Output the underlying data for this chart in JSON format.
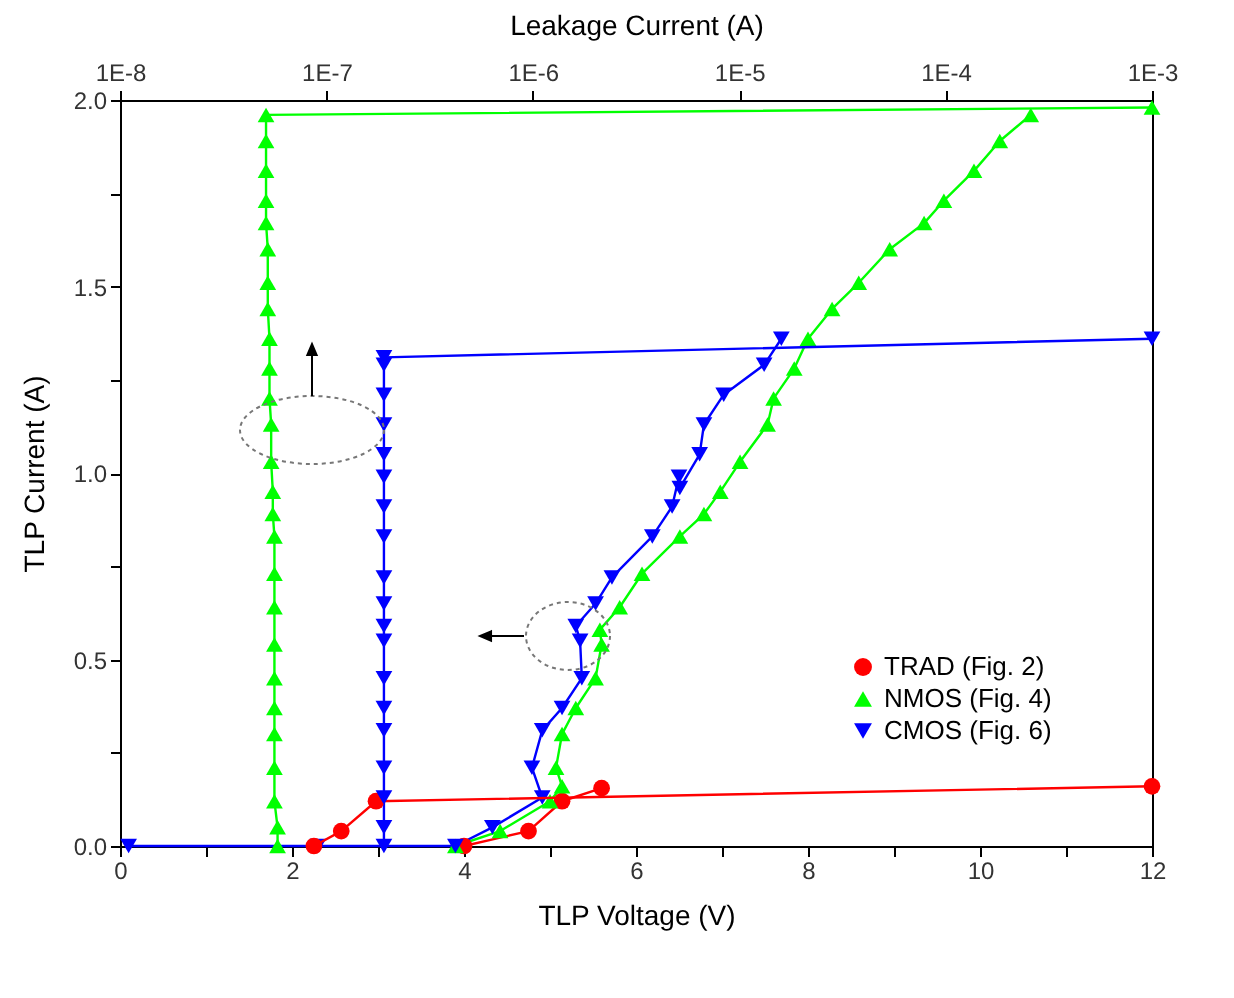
{
  "chart_data": {
    "type": "line",
    "xlabel": "TLP Voltage (V)",
    "ylabel": "TLP Current (A)",
    "x2label": "Leakage Current (A)",
    "xlim": [
      0,
      12
    ],
    "xticks": [
      0,
      {
        "value": 1,
        "label": null
      },
      2,
      {
        "value": 3,
        "label": null
      },
      4,
      {
        "value": 5,
        "label": null
      },
      6,
      {
        "value": 7,
        "label": null
      },
      8,
      {
        "value": 9,
        "label": null
      },
      10,
      {
        "value": 11,
        "label": null
      },
      12
    ],
    "ylim": [
      0,
      2
    ],
    "yticks": [
      {
        "value": 0,
        "label": "0.0"
      },
      {
        "value": 0.25,
        "label": null
      },
      {
        "value": 0.5,
        "label": "0.5"
      },
      {
        "value": 0.75,
        "label": null
      },
      {
        "value": 1,
        "label": "1.0"
      },
      {
        "value": 1.25,
        "label": null
      },
      {
        "value": 1.5,
        "label": "1.5"
      },
      {
        "value": 1.75,
        "label": null
      },
      {
        "value": 2,
        "label": "2.0"
      }
    ],
    "x2lim": [
      1e-08,
      0.001
    ],
    "x2ticks": [
      {
        "value": 1e-08,
        "label": "1E-8"
      },
      {
        "value": 1e-07,
        "label": "1E-7"
      },
      {
        "value": 1e-06,
        "label": "1E-6"
      },
      {
        "value": 1e-05,
        "label": "1E-5"
      },
      {
        "value": 0.0001,
        "label": "1E-4"
      },
      {
        "value": 0.001,
        "label": "1E-3"
      }
    ],
    "log": "x2",
    "grid": false,
    "legend": "bottom right",
    "series": [
      {
        "name": "TRAD (Fig. 2)",
        "color": "#ff0000",
        "marker": "circle",
        "x": [
          4.0,
          4.75,
          5.14,
          5.6
        ],
        "values": [
          0,
          0.04,
          0.12,
          0.155
        ]
      },
      {
        "name": "NMOS (Fig. 4)",
        "color": "#00ff00",
        "marker": "triangle",
        "x": [
          3.9,
          4.42,
          5.0,
          5.14,
          5.07,
          5.14,
          5.3,
          5.53,
          5.6,
          5.58,
          5.81,
          6.07,
          6.51,
          6.79,
          6.98,
          7.21,
          7.53,
          7.6,
          7.84,
          8.0,
          8.28,
          8.59,
          8.95,
          9.35,
          9.58,
          9.93,
          10.23,
          10.59
        ],
        "values": [
          0,
          0.04,
          0.12,
          0.16,
          0.21,
          0.3,
          0.37,
          0.45,
          0.54,
          0.58,
          0.64,
          0.73,
          0.83,
          0.89,
          0.95,
          1.03,
          1.13,
          1.2,
          1.28,
          1.36,
          1.44,
          1.51,
          1.6,
          1.67,
          1.73,
          1.81,
          1.89,
          1.96
        ]
      },
      {
        "name": "CMOS (Fig. 6)",
        "color": "#0000ff",
        "marker": "triangle-down",
        "x": [
          0.1,
          2.3,
          3.9,
          4.33,
          4.91,
          4.79,
          4.91,
          5.14,
          5.37,
          5.35,
          5.3,
          5.53,
          5.72,
          6.19,
          6.42,
          6.5,
          6.51,
          6.74,
          6.79,
          7.02,
          7.49,
          7.69
        ],
        "values": [
          0,
          0,
          0,
          0.05,
          0.13,
          0.21,
          0.31,
          0.37,
          0.45,
          0.55,
          0.59,
          0.65,
          0.72,
          0.83,
          0.91,
          0.99,
          0.96,
          1.05,
          1.13,
          1.21,
          1.29,
          1.36
        ]
      },
      {
        "color": "#ff0000",
        "marker": "circle",
        "axis": "x2",
        "x": [
          8.7e-08,
          1.18e-07,
          1.74e-07,
          0.001
        ],
        "values": [
          0,
          0.04,
          0.12,
          0.16
        ]
      },
      {
        "color": "#00ff00",
        "marker": "triangle",
        "axis": "x2",
        "x": [
          5.8e-08,
          5.8e-08,
          5.6e-08,
          5.6e-08,
          5.6e-08,
          5.6e-08,
          5.6e-08,
          5.6e-08,
          5.6e-08,
          5.6e-08,
          5.6e-08,
          5.5e-08,
          5.5e-08,
          5.4e-08,
          5.4e-08,
          5.3e-08,
          5.3e-08,
          5.3e-08,
          5.2e-08,
          5.2e-08,
          5.2e-08,
          5.1e-08,
          5.1e-08,
          5.1e-08,
          5.1e-08,
          5.1e-08,
          0.001
        ],
        "values": [
          0,
          0.05,
          0.12,
          0.21,
          0.3,
          0.37,
          0.45,
          0.54,
          0.64,
          0.73,
          0.83,
          0.89,
          0.95,
          1.03,
          1.13,
          1.2,
          1.28,
          1.36,
          1.44,
          1.51,
          1.6,
          1.67,
          1.73,
          1.81,
          1.89,
          1.96,
          1.98
        ]
      },
      {
        "color": "#0000ff",
        "marker": "triangle-down",
        "axis": "x2",
        "x": [
          1.9e-07,
          1.9e-07,
          1.9e-07,
          1.9e-07,
          1.9e-07,
          1.9e-07,
          1.9e-07,
          1.9e-07,
          1.9e-07,
          1.9e-07,
          1.9e-07,
          1.9e-07,
          1.9e-07,
          1.9e-07,
          1.9e-07,
          1.9e-07,
          1.9e-07,
          1.9e-07,
          1.9e-07,
          0.001
        ],
        "values": [
          0,
          0.05,
          0.13,
          0.21,
          0.31,
          0.37,
          0.45,
          0.55,
          0.59,
          0.65,
          0.72,
          0.83,
          0.91,
          0.99,
          1.05,
          1.13,
          1.21,
          1.29,
          1.31,
          1.36
        ]
      }
    ]
  }
}
